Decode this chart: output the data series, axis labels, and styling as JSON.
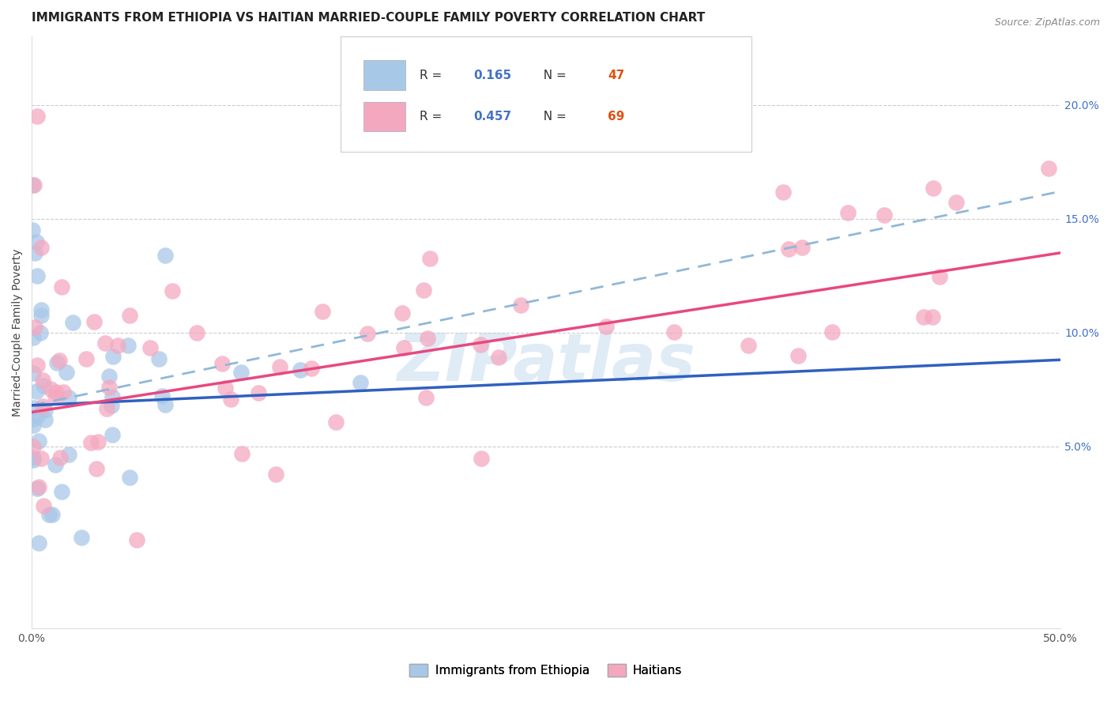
{
  "title": "IMMIGRANTS FROM ETHIOPIA VS HAITIAN MARRIED-COUPLE FAMILY POVERTY CORRELATION CHART",
  "source": "Source: ZipAtlas.com",
  "ylabel": "Married-Couple Family Poverty",
  "xlim": [
    0.0,
    0.5
  ],
  "ylim": [
    -0.03,
    0.23
  ],
  "blue_R": 0.165,
  "blue_N": 47,
  "pink_R": 0.457,
  "pink_N": 69,
  "blue_color": "#a8c8e8",
  "pink_color": "#f4a8c0",
  "blue_line_color": "#3060c0",
  "pink_line_color": "#e84880",
  "dashed_line_color": "#90b8d8",
  "watermark": "ZIPatlas",
  "legend_blue_label": "Immigrants from Ethiopia",
  "legend_pink_label": "Haitians",
  "blue_R_color": "#4472c4",
  "blue_N_color": "#e05010",
  "pink_R_color": "#4472c4",
  "pink_N_color": "#e05010",
  "title_fontsize": 11,
  "axis_label_fontsize": 10,
  "tick_fontsize": 10,
  "legend_fontsize": 11,
  "background_color": "#ffffff",
  "grid_color": "#cccccc",
  "ytick_label_color": "#4472c4",
  "xtick_label_color": "#555555"
}
